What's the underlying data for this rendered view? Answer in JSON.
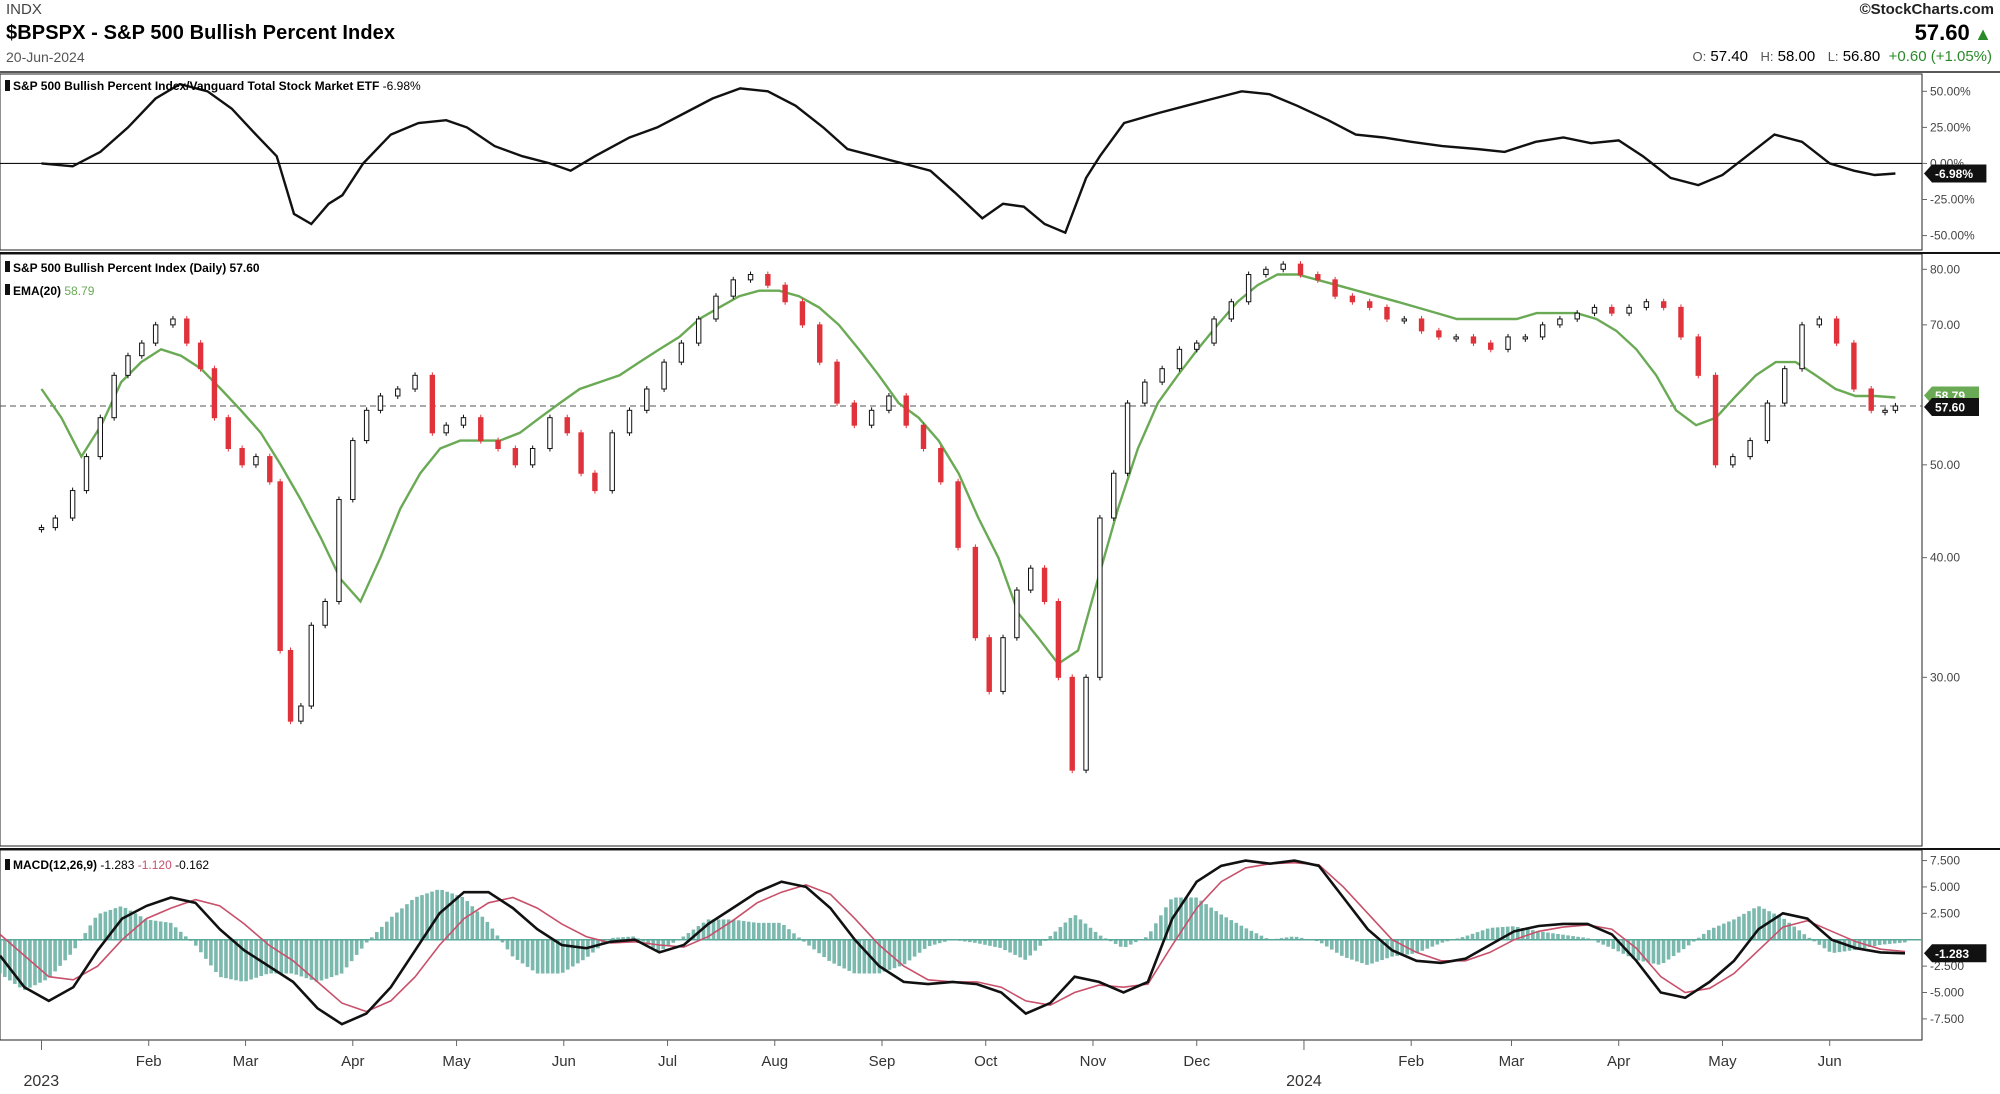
{
  "header": {
    "exchange": "INDX",
    "title": "$BPSPX - S&P 500 Bullish Percent Index",
    "date": "20-Jun-2024",
    "brand": "©StockCharts.com",
    "price": "57.60",
    "price_arrow": "▲",
    "open_label": "O:",
    "open": "57.40",
    "high_label": "H:",
    "high": "58.00",
    "low_label": "L:",
    "low": "56.80",
    "change": "+0.60 (+1.05%)"
  },
  "colors": {
    "up": "#111111",
    "down": "#e0323a",
    "ema": "#6aaa55",
    "macd": "#111111",
    "signal": "#c8506a",
    "hist": "#5aa89a",
    "change_green": "#2a8a2a"
  },
  "chart_data": [
    {
      "type": "line",
      "label": "S&P 500 Bullish Percent Index/Vanguard Total Stock Market ETF",
      "last_value": "-6.98%",
      "y_ticks": [
        "50.00%",
        "25.00%",
        "0.00%",
        "-25.00%",
        "-50.00%"
      ],
      "ylim": [
        -60,
        62
      ],
      "x": [
        "2023-01-01",
        "2023-01-10",
        "2023-01-18",
        "2023-01-26",
        "2023-02-03",
        "2023-02-10",
        "2023-02-18",
        "2023-02-25",
        "2023-03-04",
        "2023-03-10",
        "2023-03-15",
        "2023-03-20",
        "2023-03-25",
        "2023-03-29",
        "2023-04-04",
        "2023-04-12",
        "2023-04-20",
        "2023-04-28",
        "2023-05-04",
        "2023-05-12",
        "2023-05-20",
        "2023-05-28",
        "2023-06-03",
        "2023-06-10",
        "2023-06-20",
        "2023-06-28",
        "2023-07-06",
        "2023-07-14",
        "2023-07-22",
        "2023-07-30",
        "2023-08-07",
        "2023-08-15",
        "2023-08-22",
        "2023-08-30",
        "2023-09-07",
        "2023-09-15",
        "2023-09-22",
        "2023-09-30",
        "2023-10-06",
        "2023-10-12",
        "2023-10-18",
        "2023-10-24",
        "2023-10-30",
        "2023-11-03",
        "2023-11-10",
        "2023-11-20",
        "2023-11-28",
        "2023-12-06",
        "2023-12-14",
        "2023-12-22",
        "2023-12-30",
        "2024-01-08",
        "2024-01-16",
        "2024-01-24",
        "2024-02-01",
        "2024-02-10",
        "2024-02-20",
        "2024-02-28",
        "2024-03-08",
        "2024-03-16",
        "2024-03-24",
        "2024-04-01",
        "2024-04-08",
        "2024-04-16",
        "2024-04-24",
        "2024-05-01",
        "2024-05-08",
        "2024-05-16",
        "2024-05-24",
        "2024-06-01",
        "2024-06-08",
        "2024-06-14",
        "2024-06-20"
      ],
      "y": [
        0,
        -2,
        8,
        25,
        45,
        55,
        50,
        38,
        20,
        5,
        -35,
        -42,
        -28,
        -22,
        0,
        20,
        28,
        30,
        25,
        12,
        5,
        0,
        -5,
        5,
        18,
        25,
        35,
        45,
        52,
        50,
        40,
        25,
        10,
        5,
        0,
        -5,
        -20,
        -38,
        -28,
        -30,
        -42,
        -48,
        -10,
        5,
        28,
        35,
        40,
        45,
        50,
        48,
        40,
        30,
        20,
        18,
        15,
        12,
        10,
        8,
        15,
        18,
        14,
        16,
        5,
        -10,
        -15,
        -8,
        5,
        20,
        15,
        0,
        -5,
        -8,
        -6.98
      ]
    },
    {
      "type": "candlestick",
      "label": "S&P 500 Bullish Percent Index (Daily)",
      "last_value": "57.60",
      "ema_label": "EMA(20)",
      "ema_value": "58.79",
      "y_ticks": [
        "80.00",
        "70.00",
        "50.00",
        "40.00",
        "30.00"
      ],
      "ylim": [
        20,
        83
      ],
      "x": [
        "2023-01-01",
        "2023-01-05",
        "2023-01-10",
        "2023-01-14",
        "2023-01-18",
        "2023-01-22",
        "2023-01-26",
        "2023-01-30",
        "2023-02-03",
        "2023-02-08",
        "2023-02-12",
        "2023-02-16",
        "2023-02-20",
        "2023-02-24",
        "2023-02-28",
        "2023-03-04",
        "2023-03-08",
        "2023-03-11",
        "2023-03-14",
        "2023-03-17",
        "2023-03-20",
        "2023-03-24",
        "2023-03-28",
        "2023-04-01",
        "2023-04-05",
        "2023-04-09",
        "2023-04-14",
        "2023-04-19",
        "2023-04-24",
        "2023-04-28",
        "2023-05-03",
        "2023-05-08",
        "2023-05-13",
        "2023-05-18",
        "2023-05-23",
        "2023-05-28",
        "2023-06-02",
        "2023-06-06",
        "2023-06-10",
        "2023-06-15",
        "2023-06-20",
        "2023-06-25",
        "2023-06-30",
        "2023-07-05",
        "2023-07-10",
        "2023-07-15",
        "2023-07-20",
        "2023-07-25",
        "2023-07-30",
        "2023-08-04",
        "2023-08-09",
        "2023-08-14",
        "2023-08-19",
        "2023-08-24",
        "2023-08-29",
        "2023-09-03",
        "2023-09-08",
        "2023-09-13",
        "2023-09-18",
        "2023-09-23",
        "2023-09-28",
        "2023-10-02",
        "2023-10-06",
        "2023-10-10",
        "2023-10-14",
        "2023-10-18",
        "2023-10-22",
        "2023-10-26",
        "2023-10-30",
        "2023-11-03",
        "2023-11-07",
        "2023-11-11",
        "2023-11-16",
        "2023-11-21",
        "2023-11-26",
        "2023-12-01",
        "2023-12-06",
        "2023-12-11",
        "2023-12-16",
        "2023-12-21",
        "2023-12-26",
        "2023-12-31",
        "2024-01-05",
        "2024-01-10",
        "2024-01-15",
        "2024-01-20",
        "2024-01-25",
        "2024-01-30",
        "2024-02-04",
        "2024-02-09",
        "2024-02-14",
        "2024-02-19",
        "2024-02-24",
        "2024-02-29",
        "2024-03-05",
        "2024-03-10",
        "2024-03-15",
        "2024-03-20",
        "2024-03-25",
        "2024-03-30",
        "2024-04-04",
        "2024-04-09",
        "2024-04-14",
        "2024-04-19",
        "2024-04-24",
        "2024-04-29",
        "2024-05-04",
        "2024-05-09",
        "2024-05-14",
        "2024-05-19",
        "2024-05-24",
        "2024-05-29",
        "2024-06-03",
        "2024-06-08",
        "2024-06-13",
        "2024-06-17",
        "2024-06-20"
      ],
      "close": [
        43,
        44,
        47,
        51,
        56,
        62,
        65,
        67,
        70,
        71,
        67,
        63,
        56,
        52,
        50,
        51,
        48,
        32,
        27,
        28,
        34,
        36,
        46,
        53,
        57,
        59,
        60,
        62,
        54,
        55,
        56,
        53,
        52,
        50,
        52,
        56,
        54,
        49,
        47,
        54,
        57,
        60,
        64,
        67,
        71,
        75,
        78,
        79,
        77,
        74,
        70,
        64,
        58,
        55,
        57,
        59,
        55,
        52,
        48,
        41,
        33,
        29,
        33,
        37,
        39,
        36,
        30,
        24,
        30,
        44,
        49,
        58,
        61,
        63,
        66,
        67,
        71,
        74,
        79,
        80,
        81,
        79,
        78,
        75,
        74,
        73,
        71,
        71,
        69,
        68,
        68,
        67,
        66,
        68,
        68,
        70,
        71,
        72,
        73,
        72,
        73,
        74,
        73,
        68,
        62,
        50,
        51,
        53,
        58,
        63,
        70,
        71,
        67,
        60,
        57,
        57,
        57.6
      ],
      "ema": [
        60,
        56,
        51,
        55,
        61,
        64,
        66,
        65,
        63,
        60,
        57,
        54,
        50,
        46,
        42,
        38,
        36,
        40,
        45,
        49,
        52,
        53,
        53,
        53,
        54,
        56,
        58,
        60,
        61,
        62,
        64,
        66,
        68,
        71,
        73,
        75,
        76,
        76,
        75,
        73,
        70,
        66,
        62,
        58,
        56,
        53,
        49,
        44,
        40,
        35,
        33,
        31,
        32,
        38,
        45,
        52,
        58,
        62,
        66,
        70,
        74,
        77,
        79,
        79,
        78,
        77,
        76,
        75,
        74,
        73,
        72,
        71,
        71,
        71,
        71,
        72,
        72,
        72,
        71,
        69,
        66,
        62,
        57,
        55,
        56,
        59,
        62,
        64,
        64,
        62,
        60,
        59,
        59,
        58.79
      ]
    },
    {
      "type": "line",
      "label": "MACD(12,26,9)",
      "macd_value": "-1.283",
      "signal_value": "-1.120",
      "hist_value": "-0.162",
      "y_ticks": [
        "7.500",
        "5.000",
        "2.500",
        "-2.500",
        "-5.000",
        "-7.500"
      ],
      "ylim": [
        -9.5,
        8.5
      ],
      "macd": [
        -1.5,
        -4.5,
        -5.8,
        -4.5,
        -1,
        2,
        3.2,
        4,
        3.5,
        1,
        -1,
        -2.5,
        -4,
        -6.5,
        -8,
        -7,
        -4.5,
        -1,
        2.5,
        4.5,
        4.5,
        3,
        1,
        -0.5,
        -0.8,
        -0.2,
        0,
        -1.2,
        -0.5,
        1.5,
        3,
        4.5,
        5.5,
        5,
        3,
        0,
        -2.5,
        -4,
        -4.2,
        -4,
        -4.2,
        -5,
        -7,
        -6,
        -3.5,
        -4,
        -5,
        -4,
        2,
        5.5,
        7,
        7.5,
        7.2,
        7.5,
        7,
        4,
        1,
        -1,
        -2,
        -2.2,
        -1.8,
        -0.5,
        0.8,
        1.3,
        1.5,
        1.5,
        0.5,
        -2,
        -5,
        -5.5,
        -4,
        -2,
        1,
        2.5,
        2,
        0,
        -0.8,
        -1.2,
        -1.283
      ],
      "signal": [
        0.5,
        -1.5,
        -3.5,
        -3.8,
        -2.5,
        0,
        2,
        3,
        3.8,
        3.2,
        1.5,
        -0.5,
        -2,
        -4,
        -6,
        -6.8,
        -5.8,
        -3.5,
        -0.5,
        2,
        3.5,
        4,
        3,
        1.5,
        0.3,
        -0.3,
        -0.2,
        -0.5,
        -0.7,
        0.3,
        1.8,
        3.5,
        4.5,
        5.2,
        4.3,
        2,
        -0.5,
        -2.5,
        -3.8,
        -4,
        -4,
        -4.5,
        -5.8,
        -6.2,
        -5,
        -4.3,
        -4.5,
        -4.2,
        -0.5,
        3,
        5.5,
        6.8,
        7.2,
        7.3,
        7.1,
        5,
        2.5,
        0,
        -1.2,
        -2,
        -2,
        -1.2,
        0,
        0.8,
        1.2,
        1.4,
        1,
        -0.8,
        -3.5,
        -5,
        -4.6,
        -3.2,
        -1,
        1.2,
        1.8,
        0.8,
        -0.2,
        -0.9,
        -1.12
      ]
    }
  ],
  "x_axis": {
    "months": [
      "Feb",
      "Mar",
      "Apr",
      "May",
      "Jun",
      "Jul",
      "Aug",
      "Sep",
      "Oct",
      "Nov",
      "Dec",
      "Feb",
      "Mar",
      "Apr",
      "May",
      "Jun"
    ],
    "years": [
      "2023",
      "2024"
    ]
  }
}
